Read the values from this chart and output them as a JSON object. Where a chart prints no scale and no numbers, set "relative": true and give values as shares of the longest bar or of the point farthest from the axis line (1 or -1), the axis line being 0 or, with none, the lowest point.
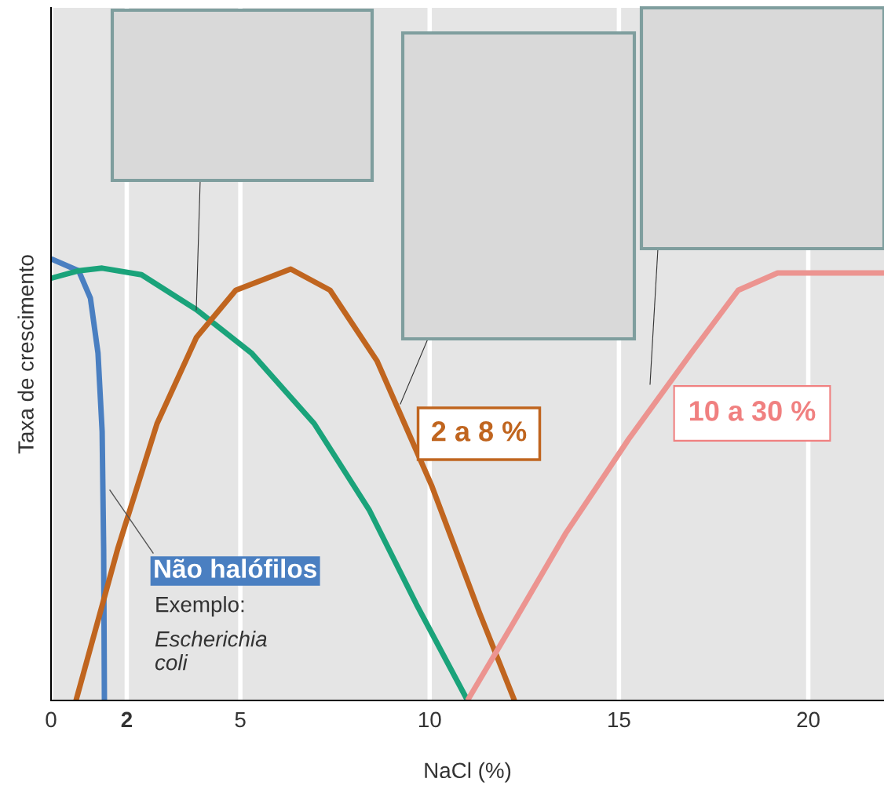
{
  "chart_data": {
    "type": "line",
    "relative": true,
    "xlabel": "NaCl (%)",
    "ylabel": "Taxa de crescimento",
    "xlim": [
      0,
      22
    ],
    "xticks": [
      0,
      {
        "value": 2,
        "label": "2"
      },
      5,
      10,
      15,
      20
    ],
    "grid": "x",
    "legend": false,
    "series": [
      {
        "color": "#4a7fc1",
        "x": [
          0,
          0.73,
          1.04,
          1.24,
          1.35,
          1.39,
          1.41
        ],
        "values": [
          1.0,
          0.973,
          0.911,
          0.787,
          0.609,
          0.343,
          0
        ]
      },
      {
        "color": "#1aa37a",
        "x": [
          0,
          0.73,
          1.35,
          2.39,
          3.84,
          5.29,
          6.95,
          8.4,
          9.65,
          11.0
        ],
        "values": [
          0.956,
          0.973,
          0.979,
          0.964,
          0.885,
          0.787,
          0.627,
          0.432,
          0.218,
          0
        ]
      },
      {
        "color": "#c0651f",
        "x": [
          0.66,
          1.76,
          2.8,
          3.84,
          4.88,
          6.33,
          7.37,
          8.61,
          10.06,
          11.31,
          12.24
        ],
        "values": [
          0,
          0.343,
          0.627,
          0.822,
          0.929,
          0.977,
          0.929,
          0.769,
          0.485,
          0.2,
          0
        ]
      },
      {
        "color": "#ec9490",
        "x": [
          11.0,
          12.14,
          13.59,
          15.25,
          16.91,
          18.15,
          19.19,
          22.0
        ],
        "values": [
          0,
          0.165,
          0.378,
          0.591,
          0.787,
          0.929,
          0.968,
          0.968
        ]
      }
    ],
    "annotations": [
      "Não halófilos",
      "Exemplo:",
      "Escherichia coli",
      "2 a 8 %",
      "10 a 30 %"
    ]
  }
}
